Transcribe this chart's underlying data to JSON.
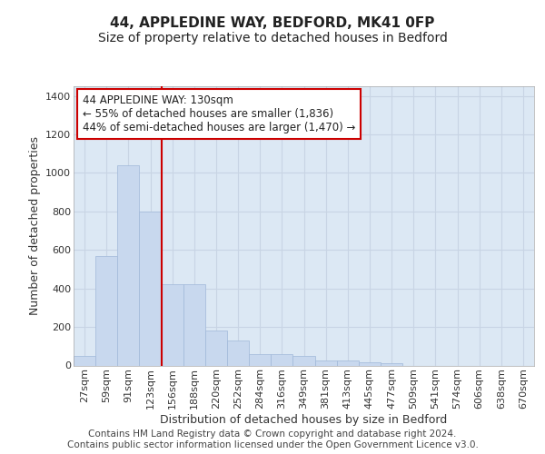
{
  "title1": "44, APPLEDINE WAY, BEDFORD, MK41 0FP",
  "title2": "Size of property relative to detached houses in Bedford",
  "xlabel": "Distribution of detached houses by size in Bedford",
  "ylabel": "Number of detached properties",
  "categories": [
    "27sqm",
    "59sqm",
    "91sqm",
    "123sqm",
    "156sqm",
    "188sqm",
    "220sqm",
    "252sqm",
    "284sqm",
    "316sqm",
    "349sqm",
    "381sqm",
    "413sqm",
    "445sqm",
    "477sqm",
    "509sqm",
    "541sqm",
    "574sqm",
    "606sqm",
    "638sqm",
    "670sqm"
  ],
  "values": [
    50,
    570,
    1040,
    800,
    420,
    420,
    180,
    130,
    60,
    60,
    50,
    25,
    25,
    15,
    10,
    0,
    0,
    0,
    0,
    0,
    0
  ],
  "bar_color": "#c8d8ee",
  "bar_edge_color": "#a0b8d8",
  "vline_color": "#cc0000",
  "vline_x": 3.5,
  "annotation_line1": "44 APPLEDINE WAY: 130sqm",
  "annotation_line2": "← 55% of detached houses are smaller (1,836)",
  "annotation_line3": "44% of semi-detached houses are larger (1,470) →",
  "annotation_box_edgecolor": "#cc0000",
  "ylim": [
    0,
    1450
  ],
  "yticks": [
    0,
    200,
    400,
    600,
    800,
    1000,
    1200,
    1400
  ],
  "grid_color": "#c8d4e4",
  "plot_bg_color": "#dce8f4",
  "fig_bg_color": "#ffffff",
  "footer": "Contains HM Land Registry data © Crown copyright and database right 2024.\nContains public sector information licensed under the Open Government Licence v3.0.",
  "title1_fontsize": 11,
  "title2_fontsize": 10,
  "xlabel_fontsize": 9,
  "ylabel_fontsize": 9,
  "tick_fontsize": 8,
  "annotation_fontsize": 8.5,
  "footer_fontsize": 7.5
}
